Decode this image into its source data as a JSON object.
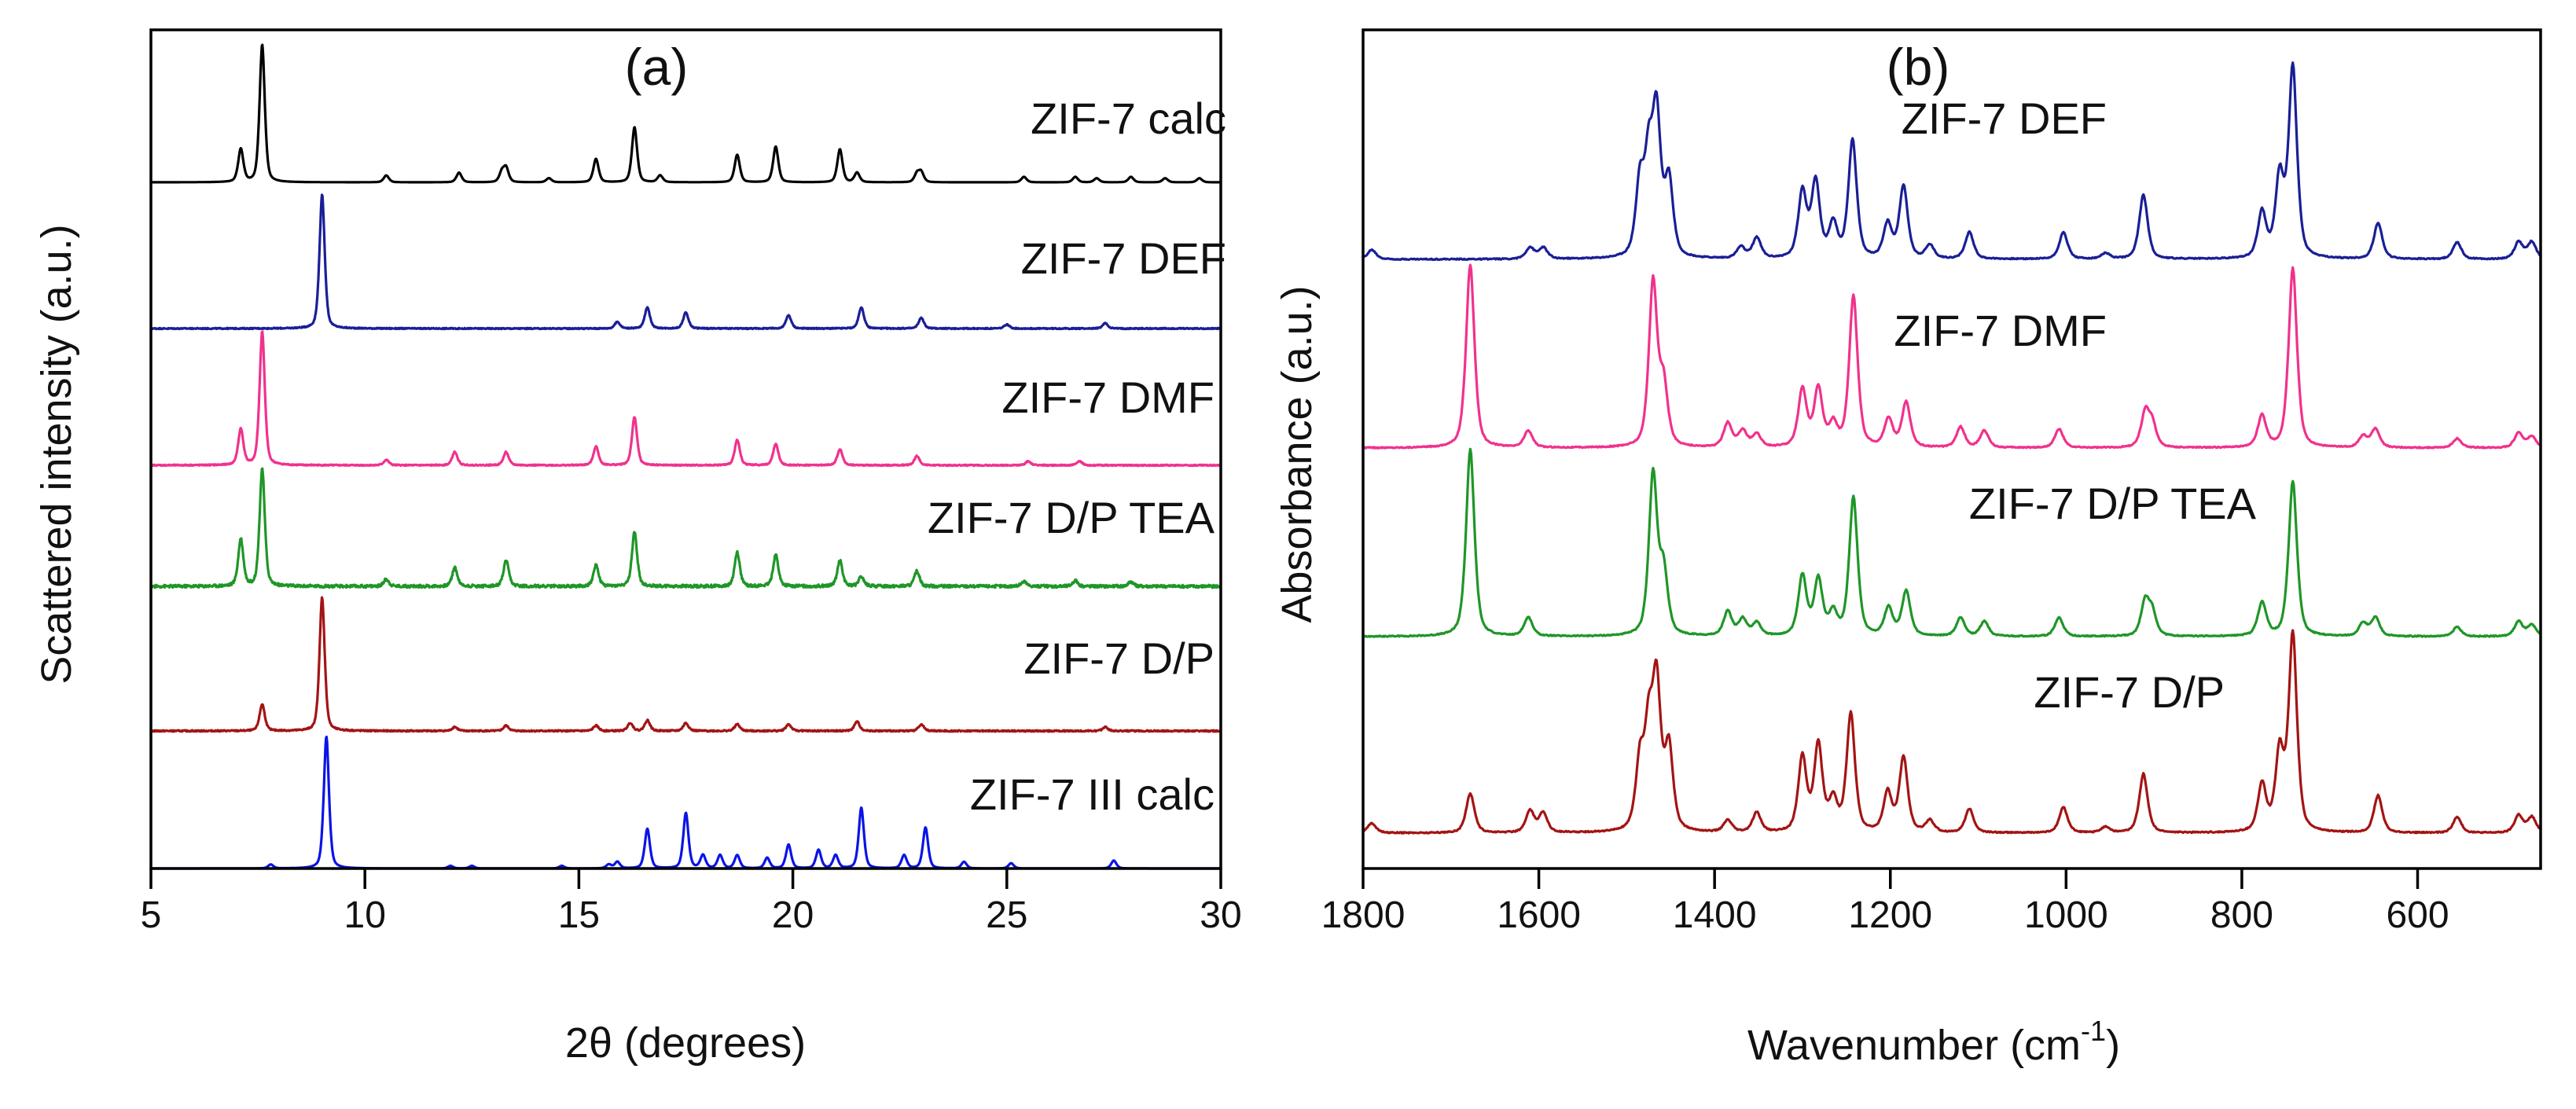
{
  "chart_data": [
    {
      "panel": "(a)",
      "type": "line",
      "xlabel": "2θ (degrees)",
      "ylabel": "Scattered intensity (a.u.)",
      "xlim": [
        5,
        30
      ],
      "xticks": [
        5,
        10,
        15,
        20,
        25,
        30
      ],
      "x_reversed": false,
      "y_ticks_shown": false,
      "series": [
        {
          "name": "ZIF-7 calc",
          "color": "#000000",
          "baseline_slot": 0,
          "noise": 0.0,
          "peaks": [
            [
              7.1,
              0.24
            ],
            [
              7.6,
              1.0
            ],
            [
              10.5,
              0.05
            ],
            [
              12.2,
              0.07
            ],
            [
              13.2,
              0.07
            ],
            [
              13.3,
              0.1
            ],
            [
              14.3,
              0.03
            ],
            [
              15.4,
              0.17
            ],
            [
              16.3,
              0.4
            ],
            [
              16.9,
              0.05
            ],
            [
              18.7,
              0.2
            ],
            [
              19.6,
              0.26
            ],
            [
              21.1,
              0.24
            ],
            [
              21.5,
              0.07
            ],
            [
              22.9,
              0.06
            ],
            [
              23.0,
              0.07
            ],
            [
              25.4,
              0.04
            ],
            [
              26.6,
              0.04
            ],
            [
              27.1,
              0.03
            ],
            [
              27.9,
              0.04
            ],
            [
              28.7,
              0.03
            ],
            [
              29.5,
              0.03
            ]
          ]
        },
        {
          "name": "ZIF-7 DEF",
          "color": "#1a1f96",
          "baseline_slot": 1,
          "noise": 0.004,
          "peaks": [
            [
              9.0,
              1.0
            ],
            [
              15.9,
              0.05
            ],
            [
              16.6,
              0.16
            ],
            [
              17.5,
              0.12
            ],
            [
              19.9,
              0.1
            ],
            [
              21.6,
              0.16
            ],
            [
              23.0,
              0.08
            ],
            [
              25.0,
              0.03
            ],
            [
              27.3,
              0.04
            ]
          ]
        },
        {
          "name": "ZIF-7 DMF",
          "color": "#f0328c",
          "baseline_slot": 2,
          "noise": 0.004,
          "peaks": [
            [
              7.1,
              0.27
            ],
            [
              7.6,
              1.0
            ],
            [
              10.5,
              0.04
            ],
            [
              12.1,
              0.1
            ],
            [
              13.3,
              0.1
            ],
            [
              15.4,
              0.14
            ],
            [
              16.3,
              0.36
            ],
            [
              18.7,
              0.19
            ],
            [
              19.6,
              0.16
            ],
            [
              21.1,
              0.12
            ],
            [
              22.9,
              0.07
            ],
            [
              25.5,
              0.03
            ],
            [
              26.7,
              0.03
            ]
          ]
        },
        {
          "name": "ZIF-7 D/P TEA",
          "color": "#1f9628",
          "baseline_slot": 3,
          "noise": 0.012,
          "peaks": [
            [
              7.1,
              0.4
            ],
            [
              7.6,
              1.0
            ],
            [
              10.5,
              0.06
            ],
            [
              12.1,
              0.16
            ],
            [
              13.3,
              0.22
            ],
            [
              15.4,
              0.18
            ],
            [
              16.3,
              0.46
            ],
            [
              18.7,
              0.29
            ],
            [
              19.6,
              0.27
            ],
            [
              21.1,
              0.22
            ],
            [
              21.6,
              0.08
            ],
            [
              22.9,
              0.13
            ],
            [
              25.4,
              0.04
            ],
            [
              26.6,
              0.05
            ],
            [
              27.9,
              0.04
            ]
          ]
        },
        {
          "name": "ZIF-7 D/P",
          "color": "#a31414",
          "baseline_slot": 4,
          "noise": 0.005,
          "peaks": [
            [
              7.6,
              0.2
            ],
            [
              9.0,
              1.0
            ],
            [
              12.1,
              0.03
            ],
            [
              13.3,
              0.04
            ],
            [
              15.4,
              0.04
            ],
            [
              16.2,
              0.06
            ],
            [
              16.6,
              0.08
            ],
            [
              17.5,
              0.06
            ],
            [
              18.7,
              0.05
            ],
            [
              19.9,
              0.05
            ],
            [
              21.5,
              0.07
            ],
            [
              23.0,
              0.05
            ],
            [
              27.3,
              0.03
            ]
          ]
        },
        {
          "name": "ZIF-7 III calc",
          "color": "#0a14e6",
          "baseline_slot": 5,
          "noise": 0.0,
          "peaks": [
            [
              7.8,
              0.03
            ],
            [
              9.1,
              1.0
            ],
            [
              12.0,
              0.02
            ],
            [
              12.5,
              0.02
            ],
            [
              14.6,
              0.02
            ],
            [
              15.7,
              0.03
            ],
            [
              15.9,
              0.05
            ],
            [
              16.6,
              0.3
            ],
            [
              17.5,
              0.42
            ],
            [
              17.9,
              0.1
            ],
            [
              18.3,
              0.1
            ],
            [
              18.7,
              0.1
            ],
            [
              19.4,
              0.08
            ],
            [
              19.9,
              0.18
            ],
            [
              20.6,
              0.14
            ],
            [
              21.0,
              0.1
            ],
            [
              21.6,
              0.46
            ],
            [
              22.6,
              0.1
            ],
            [
              23.1,
              0.31
            ],
            [
              24.0,
              0.05
            ],
            [
              25.1,
              0.04
            ],
            [
              27.5,
              0.06
            ]
          ]
        }
      ]
    },
    {
      "panel": "(b)",
      "type": "line",
      "xlabel": "Wavenumber (cm",
      "xlabel_sup": "-1",
      "xlabel_close": ")",
      "ylabel": "Absorbance (a.u.)",
      "xlim": [
        1800,
        460
      ],
      "xticks": [
        1800,
        1600,
        1400,
        1200,
        1000,
        800,
        600
      ],
      "x_reversed": true,
      "y_ticks_shown": false,
      "series": [
        {
          "name": "ZIF-7 DEF",
          "color": "#1a1f96",
          "baseline_slot": 0,
          "noise": 0.003,
          "peaks": [
            [
              1790,
              0.05
            ],
            [
              1610,
              0.06
            ],
            [
              1595,
              0.06
            ],
            [
              1485,
              0.38
            ],
            [
              1475,
              0.46
            ],
            [
              1466,
              0.72
            ],
            [
              1452,
              0.4
            ],
            [
              1370,
              0.06
            ],
            [
              1352,
              0.11
            ],
            [
              1300,
              0.35
            ],
            [
              1285,
              0.4
            ],
            [
              1265,
              0.18
            ],
            [
              1243,
              0.62
            ],
            [
              1203,
              0.18
            ],
            [
              1185,
              0.38
            ],
            [
              1155,
              0.07
            ],
            [
              1110,
              0.14
            ],
            [
              1003,
              0.14
            ],
            [
              955,
              0.03
            ],
            [
              912,
              0.34
            ],
            [
              777,
              0.24
            ],
            [
              757,
              0.42
            ],
            [
              742,
              1.0
            ],
            [
              645,
              0.19
            ],
            [
              555,
              0.09
            ],
            [
              485,
              0.09
            ],
            [
              470,
              0.09
            ]
          ]
        },
        {
          "name": "ZIF-7 DMF",
          "color": "#f0328c",
          "baseline_slot": 1,
          "noise": 0.003,
          "peaks": [
            [
              1678,
              0.98
            ],
            [
              1612,
              0.09
            ],
            [
              1470,
              0.88
            ],
            [
              1458,
              0.32
            ],
            [
              1385,
              0.13
            ],
            [
              1368,
              0.09
            ],
            [
              1352,
              0.07
            ],
            [
              1300,
              0.31
            ],
            [
              1282,
              0.31
            ],
            [
              1265,
              0.12
            ],
            [
              1242,
              0.81
            ],
            [
              1202,
              0.15
            ],
            [
              1182,
              0.24
            ],
            [
              1120,
              0.11
            ],
            [
              1093,
              0.09
            ],
            [
              1008,
              0.1
            ],
            [
              910,
              0.18
            ],
            [
              902,
              0.12
            ],
            [
              777,
              0.17
            ],
            [
              742,
              0.96
            ],
            [
              662,
              0.06
            ],
            [
              648,
              0.1
            ],
            [
              555,
              0.05
            ],
            [
              485,
              0.08
            ],
            [
              470,
              0.06
            ]
          ]
        },
        {
          "name": "ZIF-7 D/P TEA",
          "color": "#1f9628",
          "baseline_slot": 2,
          "noise": 0.003,
          "peaks": [
            [
              1678,
              1.0
            ],
            [
              1612,
              0.1
            ],
            [
              1470,
              0.86
            ],
            [
              1458,
              0.33
            ],
            [
              1385,
              0.13
            ],
            [
              1368,
              0.09
            ],
            [
              1352,
              0.07
            ],
            [
              1300,
              0.32
            ],
            [
              1282,
              0.3
            ],
            [
              1265,
              0.12
            ],
            [
              1242,
              0.74
            ],
            [
              1202,
              0.15
            ],
            [
              1182,
              0.24
            ],
            [
              1120,
              0.1
            ],
            [
              1093,
              0.08
            ],
            [
              1008,
              0.1
            ],
            [
              910,
              0.18
            ],
            [
              902,
              0.12
            ],
            [
              777,
              0.18
            ],
            [
              742,
              0.83
            ],
            [
              662,
              0.07
            ],
            [
              648,
              0.1
            ],
            [
              555,
              0.05
            ],
            [
              485,
              0.08
            ],
            [
              470,
              0.06
            ]
          ]
        },
        {
          "name": "ZIF-7 D/P",
          "color": "#a31414",
          "baseline_slot": 3,
          "noise": 0.003,
          "peaks": [
            [
              1790,
              0.05
            ],
            [
              1678,
              0.2
            ],
            [
              1610,
              0.11
            ],
            [
              1595,
              0.1
            ],
            [
              1485,
              0.34
            ],
            [
              1475,
              0.46
            ],
            [
              1466,
              0.72
            ],
            [
              1452,
              0.42
            ],
            [
              1385,
              0.06
            ],
            [
              1352,
              0.1
            ],
            [
              1300,
              0.38
            ],
            [
              1282,
              0.44
            ],
            [
              1265,
              0.16
            ],
            [
              1245,
              0.6
            ],
            [
              1203,
              0.2
            ],
            [
              1185,
              0.38
            ],
            [
              1155,
              0.06
            ],
            [
              1110,
              0.12
            ],
            [
              1003,
              0.13
            ],
            [
              955,
              0.03
            ],
            [
              912,
              0.3
            ],
            [
              777,
              0.24
            ],
            [
              757,
              0.4
            ],
            [
              742,
              1.0
            ],
            [
              645,
              0.19
            ],
            [
              555,
              0.08
            ],
            [
              485,
              0.09
            ],
            [
              470,
              0.08
            ]
          ]
        }
      ]
    }
  ]
}
